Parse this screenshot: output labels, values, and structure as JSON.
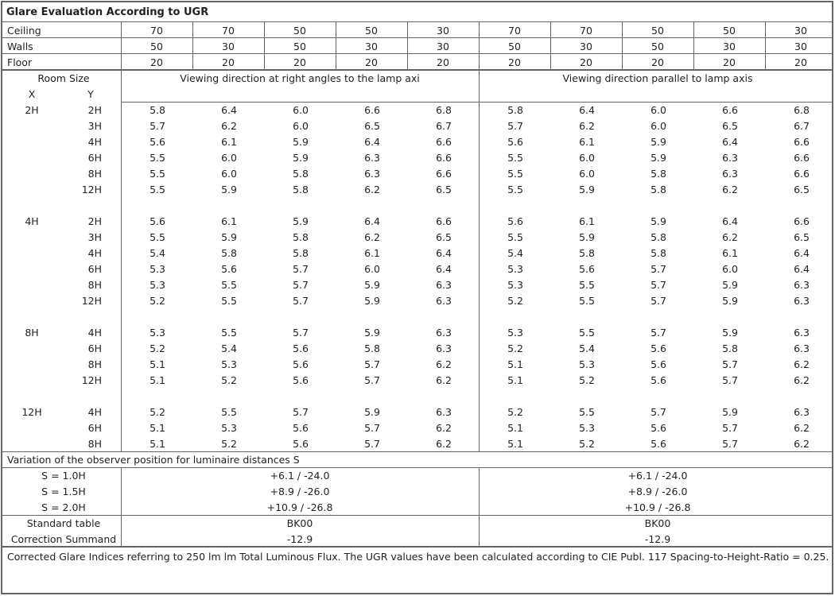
{
  "title": "Glare Evaluation According to UGR",
  "reflectances": [
    {
      "label": "Ceiling",
      "values": [
        "70",
        "70",
        "50",
        "50",
        "30",
        "70",
        "70",
        "50",
        "50",
        "30"
      ]
    },
    {
      "label": "Walls",
      "values": [
        "50",
        "30",
        "50",
        "30",
        "30",
        "50",
        "30",
        "50",
        "30",
        "30"
      ]
    },
    {
      "label": "Floor",
      "values": [
        "20",
        "20",
        "20",
        "20",
        "20",
        "20",
        "20",
        "20",
        "20",
        "20"
      ]
    }
  ],
  "room_size_label": "Room Size",
  "x_label": "X",
  "y_label": "Y",
  "direction_right_angles": "Viewing direction at right angles to the lamp axi",
  "direction_parallel": "Viewing direction parallel to lamp axis",
  "groups": [
    {
      "x": "2H",
      "rows": [
        {
          "y": "2H",
          "values": [
            "5.8",
            "6.4",
            "6.0",
            "6.6",
            "6.8",
            "5.8",
            "6.4",
            "6.0",
            "6.6",
            "6.8"
          ]
        },
        {
          "y": "3H",
          "values": [
            "5.7",
            "6.2",
            "6.0",
            "6.5",
            "6.7",
            "5.7",
            "6.2",
            "6.0",
            "6.5",
            "6.7"
          ]
        },
        {
          "y": "4H",
          "values": [
            "5.6",
            "6.1",
            "5.9",
            "6.4",
            "6.6",
            "5.6",
            "6.1",
            "5.9",
            "6.4",
            "6.6"
          ]
        },
        {
          "y": "6H",
          "values": [
            "5.5",
            "6.0",
            "5.9",
            "6.3",
            "6.6",
            "5.5",
            "6.0",
            "5.9",
            "6.3",
            "6.6"
          ]
        },
        {
          "y": "8H",
          "values": [
            "5.5",
            "6.0",
            "5.8",
            "6.3",
            "6.6",
            "5.5",
            "6.0",
            "5.8",
            "6.3",
            "6.6"
          ]
        },
        {
          "y": "12H",
          "values": [
            "5.5",
            "5.9",
            "5.8",
            "6.2",
            "6.5",
            "5.5",
            "5.9",
            "5.8",
            "6.2",
            "6.5"
          ]
        }
      ]
    },
    {
      "x": "4H",
      "rows": [
        {
          "y": "2H",
          "values": [
            "5.6",
            "6.1",
            "5.9",
            "6.4",
            "6.6",
            "5.6",
            "6.1",
            "5.9",
            "6.4",
            "6.6"
          ]
        },
        {
          "y": "3H",
          "values": [
            "5.5",
            "5.9",
            "5.8",
            "6.2",
            "6.5",
            "5.5",
            "5.9",
            "5.8",
            "6.2",
            "6.5"
          ]
        },
        {
          "y": "4H",
          "values": [
            "5.4",
            "5.8",
            "5.8",
            "6.1",
            "6.4",
            "5.4",
            "5.8",
            "5.8",
            "6.1",
            "6.4"
          ]
        },
        {
          "y": "6H",
          "values": [
            "5.3",
            "5.6",
            "5.7",
            "6.0",
            "6.4",
            "5.3",
            "5.6",
            "5.7",
            "6.0",
            "6.4"
          ]
        },
        {
          "y": "8H",
          "values": [
            "5.3",
            "5.5",
            "5.7",
            "5.9",
            "6.3",
            "5.3",
            "5.5",
            "5.7",
            "5.9",
            "6.3"
          ]
        },
        {
          "y": "12H",
          "values": [
            "5.2",
            "5.5",
            "5.7",
            "5.9",
            "6.3",
            "5.2",
            "5.5",
            "5.7",
            "5.9",
            "6.3"
          ]
        }
      ]
    },
    {
      "x": "8H",
      "rows": [
        {
          "y": "4H",
          "values": [
            "5.3",
            "5.5",
            "5.7",
            "5.9",
            "6.3",
            "5.3",
            "5.5",
            "5.7",
            "5.9",
            "6.3"
          ]
        },
        {
          "y": "6H",
          "values": [
            "5.2",
            "5.4",
            "5.6",
            "5.8",
            "6.3",
            "5.2",
            "5.4",
            "5.6",
            "5.8",
            "6.3"
          ]
        },
        {
          "y": "8H",
          "values": [
            "5.1",
            "5.3",
            "5.6",
            "5.7",
            "6.2",
            "5.1",
            "5.3",
            "5.6",
            "5.7",
            "6.2"
          ]
        },
        {
          "y": "12H",
          "values": [
            "5.1",
            "5.2",
            "5.6",
            "5.7",
            "6.2",
            "5.1",
            "5.2",
            "5.6",
            "5.7",
            "6.2"
          ]
        }
      ]
    },
    {
      "x": "12H",
      "rows": [
        {
          "y": "4H",
          "values": [
            "5.2",
            "5.5",
            "5.7",
            "5.9",
            "6.3",
            "5.2",
            "5.5",
            "5.7",
            "5.9",
            "6.3"
          ]
        },
        {
          "y": "6H",
          "values": [
            "5.1",
            "5.3",
            "5.6",
            "5.7",
            "6.2",
            "5.1",
            "5.3",
            "5.6",
            "5.7",
            "6.2"
          ]
        },
        {
          "y": "8H",
          "values": [
            "5.1",
            "5.2",
            "5.6",
            "5.7",
            "6.2",
            "5.1",
            "5.2",
            "5.6",
            "5.7",
            "6.2"
          ]
        }
      ]
    }
  ],
  "variation_title": "Variation of the observer position for luminaire distances S",
  "variations": [
    {
      "label": "S = 1.0H",
      "right_angles": "+6.1 / -24.0",
      "parallel": "+6.1 / -24.0"
    },
    {
      "label": "S = 1.5H",
      "right_angles": "+8.9 / -26.0",
      "parallel": "+8.9 / -26.0"
    },
    {
      "label": "S = 2.0H",
      "right_angles": "+10.9 / -26.8",
      "parallel": "+10.9 / -26.8"
    }
  ],
  "standard_table_label": "Standard table",
  "standard_table_right_angles": "BK00",
  "standard_table_parallel": "BK00",
  "correction_label": "Correction Summand",
  "correction_right_angles": "-12.9",
  "correction_parallel": "-12.9",
  "footer": "Corrected Glare Indices referring to 250 lm lm Total Luminous Flux. The UGR values have been calculated according to CIE Publ. 117     Spacing-to-Height-Ratio = 0.25."
}
